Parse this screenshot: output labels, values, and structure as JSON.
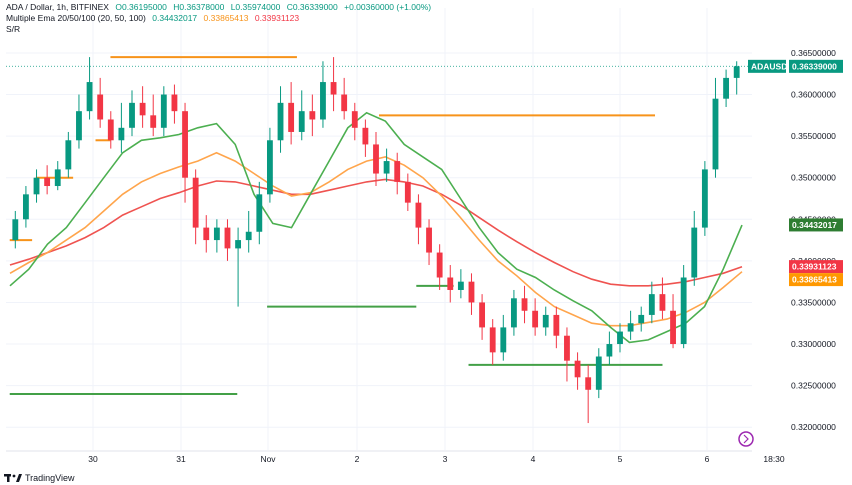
{
  "header": {
    "pair": "ADA / Dollar, 1h, BITFINEX",
    "open": "O0.36195000",
    "high": "H0.36378000",
    "low": "L0.35974000",
    "close": "C0.36339000",
    "change": "+0.00360000 (+1.00%)",
    "indicator": "Multiple Ema 20/50/100 (20, 50, 100)",
    "ema20": "0.34432017",
    "ema50": "0.33865413",
    "ema100": "0.33931123",
    "scale": "S/R"
  },
  "footer": {
    "brand": "TradingView"
  },
  "chart_data": {
    "type": "candlestick",
    "symbol": "ADAUSD",
    "y_ticks": [
      "0.36500000",
      "0.36000000",
      "0.35500000",
      "0.35000000",
      "0.34500000",
      "0.34000000",
      "0.33500000",
      "0.33000000",
      "0.32500000",
      "0.32000000"
    ],
    "y_range": [
      0.3175,
      0.368
    ],
    "x_ticks": [
      "30",
      "31",
      "Nov",
      "2",
      "3",
      "4",
      "5",
      "6",
      "18:30"
    ],
    "price_tags": [
      {
        "label": "ADAUSD",
        "value": "0.36339000",
        "price": 0.36339,
        "color": "#089981"
      },
      {
        "label": "",
        "value": "0.34432017",
        "price": 0.34432017,
        "color": "#2e7d32"
      },
      {
        "label": "",
        "value": "0.33931123",
        "price": 0.33931123,
        "color": "#f23645"
      },
      {
        "label": "",
        "value": "0.33865413",
        "price": 0.33865413,
        "color": "#ff9800"
      }
    ],
    "sr_levels": [
      {
        "price": 0.3645,
        "color": "#f7931a",
        "x_start": 0.14,
        "x_end": 0.39
      },
      {
        "price": 0.3575,
        "color": "#f7931a",
        "x_start": 0.5,
        "x_end": 0.87
      },
      {
        "price": 0.3545,
        "color": "#f7931a",
        "x_start": 0.12,
        "x_end": 0.14
      },
      {
        "price": 0.35,
        "color": "#f7931a",
        "x_start": 0.04,
        "x_end": 0.09
      },
      {
        "price": 0.3425,
        "color": "#f7931a",
        "x_start": 0.005,
        "x_end": 0.035
      },
      {
        "price": 0.3345,
        "color": "#43a047",
        "x_start": 0.35,
        "x_end": 0.55
      },
      {
        "price": 0.337,
        "color": "#43a047",
        "x_start": 0.55,
        "x_end": 0.6
      },
      {
        "price": 0.3275,
        "color": "#43a047",
        "x_start": 0.62,
        "x_end": 0.88
      },
      {
        "price": 0.324,
        "color": "#43a047",
        "x_start": 0.005,
        "x_end": 0.31
      }
    ],
    "ema20": [
      0.337,
      0.339,
      0.342,
      0.344,
      0.347,
      0.35,
      0.353,
      0.3545,
      0.3548,
      0.3552,
      0.356,
      0.3565,
      0.354,
      0.348,
      0.3445,
      0.344,
      0.348,
      0.352,
      0.356,
      0.3578,
      0.3568,
      0.354,
      0.3525,
      0.351,
      0.3475,
      0.344,
      0.341,
      0.339,
      0.338,
      0.3365,
      0.3352,
      0.334,
      0.332,
      0.3302,
      0.3305,
      0.3315,
      0.3325,
      0.3345,
      0.339,
      0.3443
    ],
    "ema50": [
      0.3385,
      0.3398,
      0.341,
      0.3425,
      0.344,
      0.346,
      0.348,
      0.3495,
      0.3505,
      0.3513,
      0.352,
      0.353,
      0.352,
      0.3505,
      0.349,
      0.3478,
      0.3482,
      0.3495,
      0.351,
      0.352,
      0.3525,
      0.3515,
      0.35,
      0.3478,
      0.3452,
      0.3425,
      0.34,
      0.3382,
      0.3362,
      0.3345,
      0.3335,
      0.3325,
      0.3322,
      0.3322,
      0.3326,
      0.333,
      0.3338,
      0.335,
      0.3368,
      0.3387
    ],
    "ema100": [
      0.3395,
      0.3402,
      0.341,
      0.3418,
      0.3428,
      0.344,
      0.3455,
      0.3465,
      0.3475,
      0.3482,
      0.349,
      0.3496,
      0.3495,
      0.349,
      0.3485,
      0.348,
      0.348,
      0.3485,
      0.349,
      0.3495,
      0.3498,
      0.3495,
      0.349,
      0.348,
      0.3467,
      0.3452,
      0.3437,
      0.3423,
      0.341,
      0.3398,
      0.3387,
      0.3378,
      0.3372,
      0.337,
      0.337,
      0.3372,
      0.3375,
      0.338,
      0.3385,
      0.3393
    ],
    "candles": [
      [
        0.3425,
        0.345,
        0.3415,
        0.346
      ],
      [
        0.345,
        0.348,
        0.344,
        0.349
      ],
      [
        0.348,
        0.35,
        0.347,
        0.351
      ],
      [
        0.35,
        0.349,
        0.348,
        0.3515
      ],
      [
        0.349,
        0.351,
        0.3485,
        0.352
      ],
      [
        0.351,
        0.3545,
        0.35,
        0.3555
      ],
      [
        0.3545,
        0.358,
        0.3535,
        0.36
      ],
      [
        0.358,
        0.3615,
        0.357,
        0.3645
      ],
      [
        0.36,
        0.357,
        0.356,
        0.362
      ],
      [
        0.357,
        0.3545,
        0.3535,
        0.358
      ],
      [
        0.3545,
        0.356,
        0.353,
        0.359
      ],
      [
        0.356,
        0.359,
        0.355,
        0.3605
      ],
      [
        0.359,
        0.3575,
        0.356,
        0.361
      ],
      [
        0.3575,
        0.356,
        0.355,
        0.36
      ],
      [
        0.356,
        0.36,
        0.355,
        0.361
      ],
      [
        0.36,
        0.358,
        0.3565,
        0.3612
      ],
      [
        0.358,
        0.35,
        0.347,
        0.359
      ],
      [
        0.35,
        0.344,
        0.342,
        0.351
      ],
      [
        0.344,
        0.3425,
        0.341,
        0.3455
      ],
      [
        0.3425,
        0.344,
        0.341,
        0.345
      ],
      [
        0.344,
        0.3415,
        0.34,
        0.345
      ],
      [
        0.3415,
        0.3425,
        0.3345,
        0.344
      ],
      [
        0.3425,
        0.3435,
        0.341,
        0.346
      ],
      [
        0.3435,
        0.348,
        0.342,
        0.3495
      ],
      [
        0.348,
        0.3545,
        0.347,
        0.356
      ],
      [
        0.3545,
        0.359,
        0.353,
        0.361
      ],
      [
        0.359,
        0.3555,
        0.354,
        0.3615
      ],
      [
        0.3555,
        0.358,
        0.3545,
        0.3605
      ],
      [
        0.358,
        0.357,
        0.355,
        0.36
      ],
      [
        0.357,
        0.3615,
        0.356,
        0.364
      ],
      [
        0.3615,
        0.36,
        0.358,
        0.3645
      ],
      [
        0.36,
        0.358,
        0.357,
        0.362
      ],
      [
        0.358,
        0.356,
        0.3545,
        0.359
      ],
      [
        0.356,
        0.354,
        0.3525,
        0.357
      ],
      [
        0.354,
        0.3505,
        0.349,
        0.3555
      ],
      [
        0.3505,
        0.352,
        0.3495,
        0.3535
      ],
      [
        0.352,
        0.3495,
        0.348,
        0.353
      ],
      [
        0.3495,
        0.347,
        0.346,
        0.3505
      ],
      [
        0.347,
        0.344,
        0.342,
        0.348
      ],
      [
        0.344,
        0.341,
        0.3395,
        0.345
      ],
      [
        0.341,
        0.338,
        0.3365,
        0.342
      ],
      [
        0.338,
        0.3365,
        0.335,
        0.3395
      ],
      [
        0.3365,
        0.3375,
        0.3355,
        0.339
      ],
      [
        0.3375,
        0.335,
        0.3335,
        0.3385
      ],
      [
        0.335,
        0.332,
        0.3305,
        0.336
      ],
      [
        0.332,
        0.329,
        0.3275,
        0.333
      ],
      [
        0.329,
        0.332,
        0.328,
        0.3335
      ],
      [
        0.332,
        0.3355,
        0.331,
        0.3365
      ],
      [
        0.3355,
        0.334,
        0.3325,
        0.337
      ],
      [
        0.334,
        0.332,
        0.331,
        0.3355
      ],
      [
        0.332,
        0.3335,
        0.331,
        0.3345
      ],
      [
        0.3335,
        0.331,
        0.3295,
        0.3345
      ],
      [
        0.331,
        0.328,
        0.3255,
        0.332
      ],
      [
        0.328,
        0.326,
        0.3245,
        0.329
      ],
      [
        0.326,
        0.3245,
        0.3205,
        0.3275
      ],
      [
        0.3245,
        0.3285,
        0.3235,
        0.3295
      ],
      [
        0.3285,
        0.33,
        0.3275,
        0.3315
      ],
      [
        0.33,
        0.3315,
        0.329,
        0.3325
      ],
      [
        0.3315,
        0.3325,
        0.3305,
        0.334
      ],
      [
        0.3325,
        0.3335,
        0.3315,
        0.3345
      ],
      [
        0.3335,
        0.336,
        0.3325,
        0.3375
      ],
      [
        0.336,
        0.334,
        0.333,
        0.338
      ],
      [
        0.334,
        0.33,
        0.3295,
        0.336
      ],
      [
        0.33,
        0.338,
        0.3295,
        0.3395
      ],
      [
        0.338,
        0.344,
        0.337,
        0.346
      ],
      [
        0.344,
        0.351,
        0.343,
        0.352
      ],
      [
        0.351,
        0.3595,
        0.35,
        0.362
      ],
      [
        0.3595,
        0.362,
        0.3585,
        0.363
      ],
      [
        0.362,
        0.3634,
        0.36,
        0.364
      ]
    ]
  }
}
